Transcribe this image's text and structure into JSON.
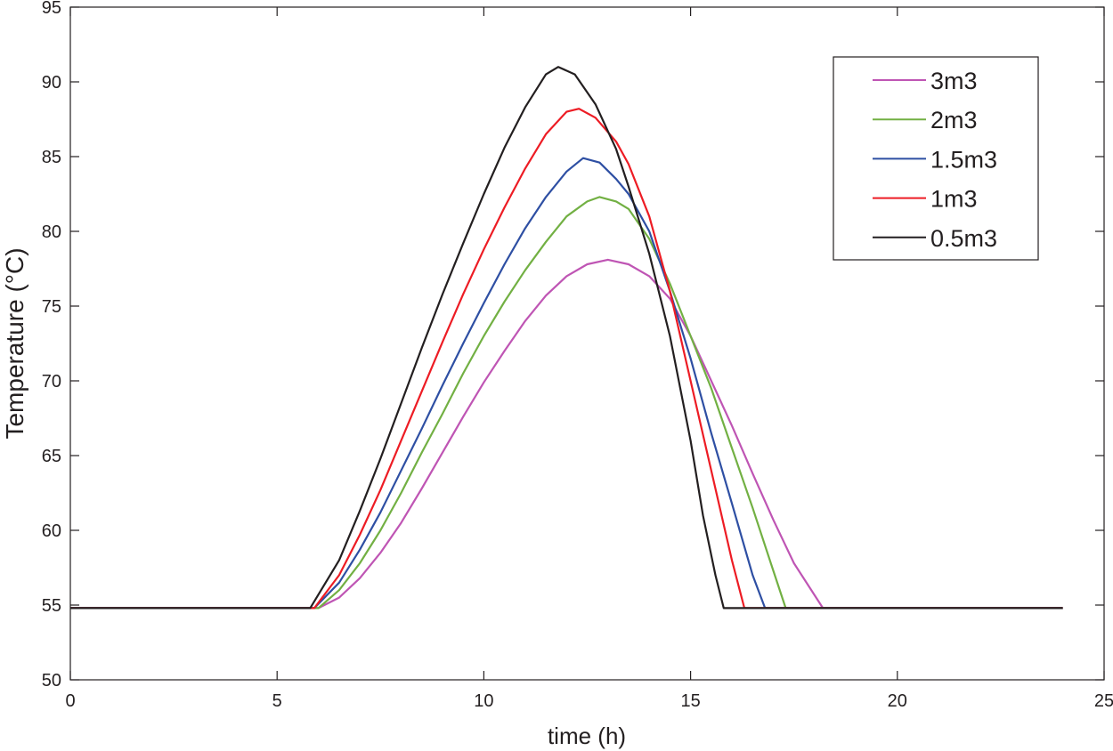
{
  "chart_data": {
    "type": "line",
    "title": "",
    "xlabel": "time (h)",
    "ylabel": "Temperature (°C)",
    "xlim": [
      0,
      25
    ],
    "ylim": [
      50,
      95
    ],
    "xticks": [
      0,
      5,
      10,
      15,
      20,
      25
    ],
    "yticks": [
      50,
      55,
      60,
      65,
      70,
      75,
      80,
      85,
      90,
      95
    ],
    "grid": false,
    "legend_position": "top-right",
    "series": [
      {
        "name": "3m3",
        "color": "#bf55b4",
        "points": [
          [
            0,
            54.8
          ],
          [
            6.0,
            54.8
          ],
          [
            6.5,
            55.5
          ],
          [
            7,
            56.8
          ],
          [
            7.5,
            58.5
          ],
          [
            8,
            60.5
          ],
          [
            8.5,
            62.8
          ],
          [
            9,
            65.2
          ],
          [
            9.5,
            67.6
          ],
          [
            10,
            69.9
          ],
          [
            10.5,
            72.0
          ],
          [
            11,
            74.0
          ],
          [
            11.5,
            75.7
          ],
          [
            12,
            77.0
          ],
          [
            12.5,
            77.8
          ],
          [
            13,
            78.1
          ],
          [
            13.5,
            77.8
          ],
          [
            14,
            77.0
          ],
          [
            14.5,
            75.5
          ],
          [
            15,
            73.0
          ],
          [
            15.5,
            70.0
          ],
          [
            16,
            67.0
          ],
          [
            16.5,
            63.8
          ],
          [
            17,
            60.7
          ],
          [
            17.5,
            57.8
          ],
          [
            18.2,
            54.8
          ],
          [
            24,
            54.8
          ]
        ]
      },
      {
        "name": "2m3",
        "color": "#72b043",
        "points": [
          [
            0,
            54.8
          ],
          [
            6.0,
            54.8
          ],
          [
            6.5,
            56.0
          ],
          [
            7,
            57.8
          ],
          [
            7.5,
            60.0
          ],
          [
            8,
            62.5
          ],
          [
            8.5,
            65.2
          ],
          [
            9,
            67.8
          ],
          [
            9.5,
            70.5
          ],
          [
            10,
            73.0
          ],
          [
            10.5,
            75.3
          ],
          [
            11,
            77.4
          ],
          [
            11.5,
            79.3
          ],
          [
            12,
            81.0
          ],
          [
            12.5,
            82.0
          ],
          [
            12.8,
            82.3
          ],
          [
            13.2,
            82.0
          ],
          [
            13.5,
            81.5
          ],
          [
            14,
            79.5
          ],
          [
            14.5,
            76.5
          ],
          [
            15,
            73.0
          ],
          [
            15.5,
            69.5
          ],
          [
            16,
            65.5
          ],
          [
            16.5,
            61.5
          ],
          [
            17,
            57.3
          ],
          [
            17.3,
            54.8
          ],
          [
            24,
            54.8
          ]
        ]
      },
      {
        "name": "1.5m3",
        "color": "#2e4fa3",
        "points": [
          [
            0,
            54.8
          ],
          [
            5.9,
            54.8
          ],
          [
            6.5,
            56.5
          ],
          [
            7,
            58.7
          ],
          [
            7.5,
            61.2
          ],
          [
            8,
            64.0
          ],
          [
            8.5,
            66.8
          ],
          [
            9,
            69.7
          ],
          [
            9.5,
            72.5
          ],
          [
            10,
            75.2
          ],
          [
            10.5,
            77.8
          ],
          [
            11,
            80.2
          ],
          [
            11.5,
            82.3
          ],
          [
            12,
            84.0
          ],
          [
            12.4,
            84.9
          ],
          [
            12.8,
            84.6
          ],
          [
            13.2,
            83.5
          ],
          [
            13.5,
            82.5
          ],
          [
            14,
            80.0
          ],
          [
            14.5,
            76.0
          ],
          [
            15,
            71.5
          ],
          [
            15.5,
            66.5
          ],
          [
            16,
            61.8
          ],
          [
            16.5,
            57.0
          ],
          [
            16.8,
            54.8
          ],
          [
            24,
            54.8
          ]
        ]
      },
      {
        "name": "1m3",
        "color": "#ed1c24",
        "points": [
          [
            0,
            54.8
          ],
          [
            5.9,
            54.8
          ],
          [
            6.5,
            57.0
          ],
          [
            7,
            59.7
          ],
          [
            7.5,
            62.7
          ],
          [
            8,
            66.0
          ],
          [
            8.5,
            69.3
          ],
          [
            9,
            72.6
          ],
          [
            9.5,
            75.8
          ],
          [
            10,
            78.8
          ],
          [
            10.5,
            81.6
          ],
          [
            11,
            84.2
          ],
          [
            11.5,
            86.5
          ],
          [
            12,
            88.0
          ],
          [
            12.3,
            88.2
          ],
          [
            12.7,
            87.6
          ],
          [
            13.2,
            86.0
          ],
          [
            13.5,
            84.5
          ],
          [
            14,
            81.0
          ],
          [
            14.5,
            76.0
          ],
          [
            15,
            70.0
          ],
          [
            15.5,
            64.0
          ],
          [
            16,
            58.0
          ],
          [
            16.3,
            54.8
          ],
          [
            24,
            54.8
          ]
        ]
      },
      {
        "name": "0.5m3",
        "color": "#231f20",
        "points": [
          [
            0,
            54.8
          ],
          [
            5.8,
            54.8
          ],
          [
            6.5,
            58.0
          ],
          [
            7,
            61.3
          ],
          [
            7.5,
            64.8
          ],
          [
            8,
            68.5
          ],
          [
            8.5,
            72.2
          ],
          [
            9,
            75.8
          ],
          [
            9.5,
            79.2
          ],
          [
            10,
            82.5
          ],
          [
            10.5,
            85.6
          ],
          [
            11,
            88.3
          ],
          [
            11.5,
            90.5
          ],
          [
            11.8,
            91.0
          ],
          [
            12.2,
            90.5
          ],
          [
            12.7,
            88.5
          ],
          [
            13.2,
            85.5
          ],
          [
            13.5,
            83.0
          ],
          [
            14,
            78.5
          ],
          [
            14.5,
            73.0
          ],
          [
            15,
            66.0
          ],
          [
            15.3,
            61.0
          ],
          [
            15.6,
            57.0
          ],
          [
            15.8,
            54.8
          ],
          [
            24,
            54.8
          ]
        ]
      }
    ]
  }
}
